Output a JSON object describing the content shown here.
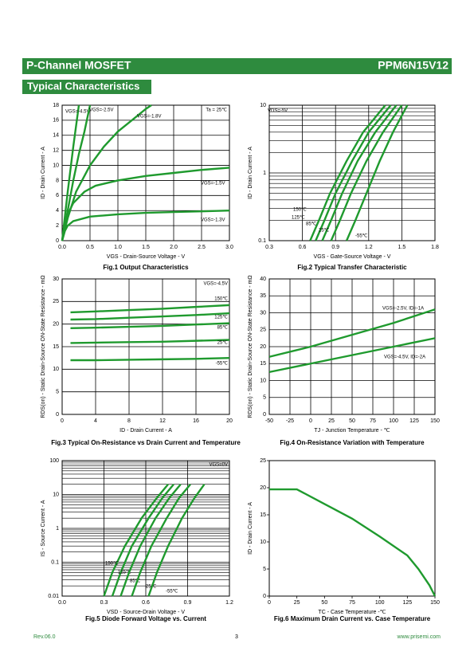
{
  "header": {
    "title": "P-Channel MOSFET",
    "part": "PPM6N15V12",
    "section": "Typical Characteristics"
  },
  "footer": {
    "revision": "Rev.06.0",
    "page": "3",
    "website": "www.prisemi.com"
  },
  "chart_data": [
    {
      "type": "line",
      "caption": "Fig.1 Output Characteristics",
      "xlabel": "VGS - Drain-Source Voltage - V",
      "ylabel": "ID - Drain Current - A",
      "annotations": [
        "Ta = 25℃"
      ],
      "grid": true,
      "log": false,
      "color": "#1f9a2e",
      "xlim": [
        0,
        3
      ],
      "xticks": [
        {
          "value": 0,
          "label": "0.0"
        },
        0.5,
        {
          "value": 1,
          "label": "1.0"
        },
        1.5,
        {
          "value": 2,
          "label": "2.0"
        },
        2.5,
        {
          "value": 3,
          "label": "3.0"
        }
      ],
      "ylim": [
        0,
        18
      ],
      "yticks": [
        0,
        2,
        4,
        6,
        8,
        10,
        12,
        14,
        16,
        18
      ],
      "series": [
        {
          "name": "VGS=-4.5V",
          "x": [
            0,
            0.1,
            0.2,
            0.3
          ],
          "values": [
            0,
            6.5,
            12.5,
            18
          ]
        },
        {
          "name": "VGS=-2.5V",
          "x": [
            0,
            0.1,
            0.2,
            0.3,
            0.4,
            0.5
          ],
          "values": [
            0,
            4,
            8,
            11.5,
            14.5,
            18
          ]
        },
        {
          "name": "VGS=-1.8V",
          "x": [
            0,
            0.1,
            0.25,
            0.5,
            0.75,
            1,
            1.25,
            1.5,
            1.6
          ],
          "values": [
            0,
            3,
            6.5,
            10,
            12.5,
            14.5,
            16,
            17.5,
            18
          ]
        },
        {
          "name": "VGS=-1.5V",
          "x": [
            0,
            0.05,
            0.1,
            0.2,
            0.4,
            0.6,
            1,
            1.5,
            2,
            2.5,
            3
          ],
          "values": [
            0,
            2,
            3.5,
            5,
            6.5,
            7.3,
            8,
            8.6,
            9,
            9.4,
            9.7
          ]
        },
        {
          "name": "VGS=-1.3V",
          "x": [
            0,
            0.05,
            0.1,
            0.2,
            0.5,
            1,
            1.5,
            2,
            2.5,
            3
          ],
          "values": [
            0,
            1.3,
            2,
            2.6,
            3.2,
            3.5,
            3.7,
            3.8,
            3.9,
            4
          ]
        }
      ]
    },
    {
      "type": "line",
      "caption": "Fig.2 Typical Transfer Characteristic",
      "xlabel": "VGS - Gate-Source Voltage - V",
      "ylabel": "ID - Drain Current - A",
      "annotations": [
        "VDS=-5V"
      ],
      "grid": true,
      "log": true,
      "color": "#1f9a2e",
      "xlim": [
        0.3,
        1.8
      ],
      "xticks": [
        0.3,
        0.6,
        0.9,
        1.2,
        1.5,
        1.8
      ],
      "ylim": [
        0.1,
        10
      ],
      "yticks": [
        0.1,
        1,
        10
      ],
      "series": [
        {
          "name": "150℃",
          "x": [
            0.67,
            0.75,
            0.85,
            1.0,
            1.15,
            1.35
          ],
          "values": [
            0.1,
            0.2,
            0.5,
            1.5,
            4,
            10
          ]
        },
        {
          "name": "125℃",
          "x": [
            0.72,
            0.8,
            0.9,
            1.05,
            1.2,
            1.4
          ],
          "values": [
            0.1,
            0.2,
            0.5,
            1.5,
            4,
            10
          ]
        },
        {
          "name": "85℃",
          "x": [
            0.78,
            0.86,
            0.96,
            1.1,
            1.26,
            1.45
          ],
          "values": [
            0.1,
            0.2,
            0.5,
            1.5,
            4,
            10
          ]
        },
        {
          "name": "25℃",
          "x": [
            0.86,
            0.94,
            1.04,
            1.18,
            1.33,
            1.5
          ],
          "values": [
            0.1,
            0.2,
            0.5,
            1.5,
            4,
            10
          ]
        },
        {
          "name": "-55℃",
          "x": [
            1.0,
            1.08,
            1.18,
            1.3,
            1.42,
            1.55
          ],
          "values": [
            0.1,
            0.2,
            0.5,
            1.5,
            4,
            10
          ]
        }
      ]
    },
    {
      "type": "line",
      "caption": "Fig.3 Typical On-Resistance  vs Drain Current and Temperature",
      "xlabel": "ID - Drain Current - A",
      "ylabel": "RDS(on) - Static Drain-Source ON-State Resistance - mΩ",
      "annotations": [
        "VGS=-4.5V"
      ],
      "grid": true,
      "log": false,
      "color": "#1f9a2e",
      "xlim": [
        0,
        20
      ],
      "xticks": [
        0,
        4,
        8,
        12,
        16,
        20
      ],
      "ylim": [
        0,
        30
      ],
      "yticks": [
        0,
        5,
        10,
        15,
        20,
        25,
        30
      ],
      "series": [
        {
          "name": "150℃",
          "x": [
            1,
            4,
            8,
            12,
            16,
            20
          ],
          "values": [
            22.6,
            22.8,
            23.1,
            23.4,
            23.8,
            24.2
          ]
        },
        {
          "name": "125℃",
          "x": [
            1,
            4,
            8,
            12,
            16,
            20
          ],
          "values": [
            21,
            21.1,
            21.4,
            21.7,
            22,
            22.4
          ]
        },
        {
          "name": "85℃",
          "x": [
            1,
            4,
            8,
            12,
            16,
            20
          ],
          "values": [
            19.1,
            19.2,
            19.4,
            19.6,
            19.9,
            20.2
          ]
        },
        {
          "name": "25℃",
          "x": [
            1,
            4,
            8,
            12,
            16,
            20
          ],
          "values": [
            15.8,
            15.9,
            16,
            16.1,
            16.3,
            16.5
          ]
        },
        {
          "name": "-55℃",
          "x": [
            1,
            4,
            8,
            12,
            16,
            20
          ],
          "values": [
            12,
            12,
            12.1,
            12.2,
            12.3,
            12.5
          ]
        }
      ]
    },
    {
      "type": "line",
      "caption": "Fig.4 On-Resistance Variation with Temperature",
      "xlabel": "TJ - Junction Temperature - ℃",
      "ylabel": "RDS(on) - Static Drain-Source ON-State Resistance - mΩ",
      "annotations": [],
      "grid": true,
      "log": false,
      "color": "#1f9a2e",
      "xlim": [
        -50,
        150
      ],
      "xticks": [
        -50,
        -25,
        0,
        25,
        50,
        75,
        100,
        125,
        150
      ],
      "ylim": [
        0,
        40
      ],
      "yticks": [
        0,
        5,
        10,
        15,
        20,
        25,
        30,
        35,
        40
      ],
      "series": [
        {
          "name": "VGS=-2.5V, ID=-1A",
          "x": [
            -50,
            0,
            50,
            100,
            150
          ],
          "values": [
            17,
            20,
            23.5,
            27,
            31
          ]
        },
        {
          "name": "VGS=-4.5V, ID=-2A",
          "x": [
            -50,
            0,
            50,
            100,
            150
          ],
          "values": [
            12.5,
            15,
            17.5,
            20,
            22.5
          ]
        }
      ]
    },
    {
      "type": "line",
      "caption": "Fig.5 Diode Forward Voltage vs. Current",
      "xlabel": "VSD - Source-Drain Voltage - V",
      "ylabel": "IS - Source Current - A",
      "annotations": [
        "VGS=0V"
      ],
      "grid": true,
      "log": true,
      "color": "#1f9a2e",
      "xlim": [
        0,
        1.2
      ],
      "xticks": [
        {
          "value": 0,
          "label": "0.0"
        },
        0.3,
        0.6,
        0.9,
        1.2
      ],
      "ylim": [
        0.01,
        100
      ],
      "yticks": [
        0.01,
        0.1,
        1,
        10,
        100
      ],
      "series": [
        {
          "name": "150℃",
          "x": [
            0.3,
            0.36,
            0.45,
            0.57,
            0.68,
            0.76
          ],
          "values": [
            0.01,
            0.05,
            0.3,
            2,
            8,
            20
          ]
        },
        {
          "name": "125℃",
          "x": [
            0.36,
            0.42,
            0.5,
            0.62,
            0.72,
            0.8
          ],
          "values": [
            0.01,
            0.05,
            0.3,
            2,
            8,
            20
          ]
        },
        {
          "name": "85℃",
          "x": [
            0.42,
            0.48,
            0.56,
            0.67,
            0.77,
            0.85
          ],
          "values": [
            0.01,
            0.05,
            0.3,
            2,
            8,
            20
          ]
        },
        {
          "name": "25℃",
          "x": [
            0.5,
            0.56,
            0.64,
            0.75,
            0.84,
            0.92
          ],
          "values": [
            0.01,
            0.05,
            0.3,
            2,
            8,
            20
          ]
        },
        {
          "name": "-55℃",
          "x": [
            0.62,
            0.68,
            0.76,
            0.86,
            0.95,
            1.02
          ],
          "values": [
            0.01,
            0.05,
            0.3,
            2,
            8,
            20
          ]
        }
      ]
    },
    {
      "type": "line",
      "caption": "Fig.6 Maximum Drain Current vs. Case Temperature",
      "xlabel": "TC - Case Temperature -℃",
      "ylabel": "ID - Drain Current - A",
      "annotations": [],
      "grid": false,
      "log": false,
      "color": "#1f9a2e",
      "xlim": [
        0,
        150
      ],
      "xticks": [
        0,
        25,
        50,
        75,
        100,
        125,
        150
      ],
      "ylim": [
        0,
        25
      ],
      "yticks": [
        0,
        5,
        10,
        15,
        20,
        25
      ],
      "series": [
        {
          "name": null,
          "x": [
            0,
            25,
            50,
            75,
            100,
            125,
            135,
            145,
            150
          ],
          "values": [
            19.7,
            19.7,
            17,
            14.3,
            11,
            7.5,
            5,
            2,
            0
          ]
        }
      ]
    }
  ]
}
